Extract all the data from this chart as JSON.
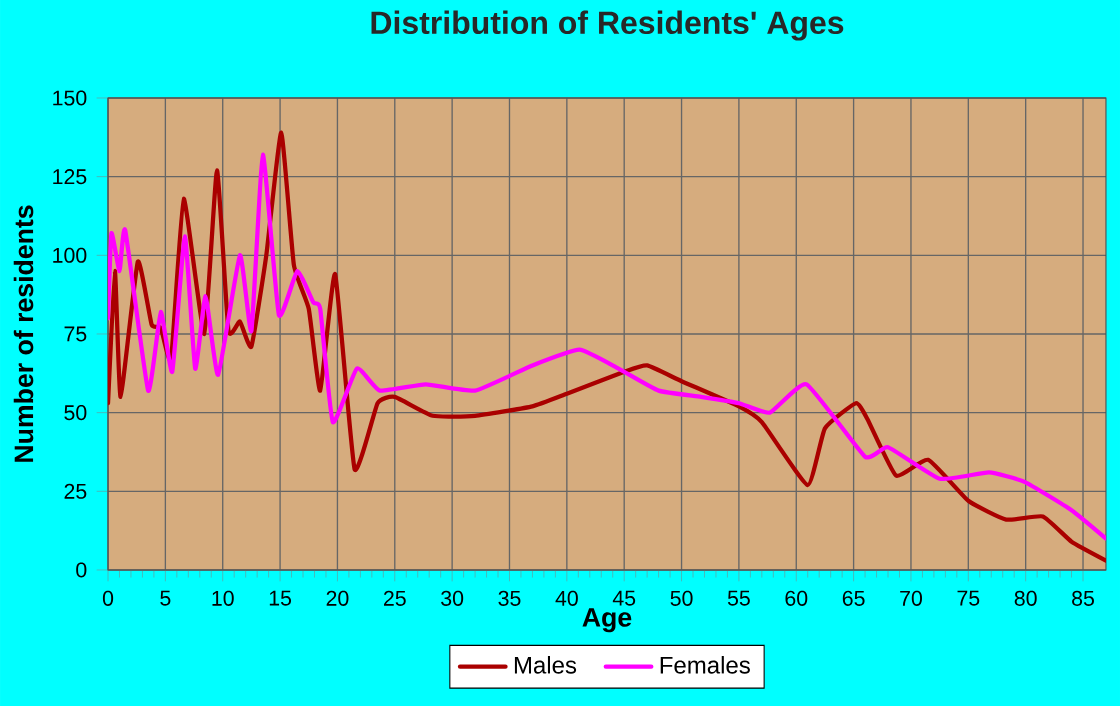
{
  "chart_data": {
    "type": "line",
    "title": "Distribution of Residents' Ages",
    "xlabel": "Age",
    "ylabel": "Number of residents",
    "xlim": [
      0,
      87
    ],
    "xticks": [
      0,
      5,
      10,
      15,
      20,
      25,
      30,
      35,
      40,
      45,
      50,
      55,
      60,
      65,
      70,
      75,
      80,
      85
    ],
    "ylim": [
      0,
      150
    ],
    "yticks": [
      0,
      25,
      50,
      75,
      100,
      125,
      150
    ],
    "grid": true,
    "legend": "bottom",
    "series": [
      {
        "name": "Males",
        "color": "#aa0000",
        "x": [
          0,
          0.6,
          1.1,
          2.6,
          3.8,
          4.6,
          5.5,
          6.6,
          8.4,
          9.5,
          10.5,
          11.5,
          12.5,
          13.8,
          15.1,
          16.2,
          17.5,
          18.5,
          19.8,
          21.5,
          23.5,
          25,
          28.3,
          32,
          37,
          40,
          45,
          47,
          50,
          55,
          57,
          61,
          62.5,
          65.2,
          66.2,
          68.7,
          71.5,
          75,
          78.3,
          81.5,
          84,
          87
        ],
        "values": [
          53,
          95,
          55,
          98,
          78,
          77,
          67,
          118,
          75,
          127,
          76,
          79,
          71,
          100,
          139,
          97,
          83,
          57,
          94,
          32,
          53,
          55,
          49,
          49,
          52,
          56,
          63,
          65,
          60,
          52,
          47,
          27,
          45,
          53,
          48,
          30,
          35,
          22,
          16,
          17,
          9,
          3
        ]
      },
      {
        "name": "Females",
        "color": "#ff00ff",
        "x": [
          0,
          0.3,
          1,
          1.5,
          3.5,
          4.6,
          5.6,
          6.7,
          7.6,
          8.5,
          9.6,
          11.5,
          12.5,
          13.5,
          14.9,
          16.5,
          17.9,
          18.5,
          19.6,
          21.7,
          23.7,
          27.7,
          32,
          37,
          41.1,
          44.5,
          48,
          51.7,
          55,
          57.7,
          60.9,
          66,
          68,
          72.5,
          76.8,
          79.9,
          84,
          87
        ],
        "values": [
          80,
          107,
          95,
          108,
          57,
          82,
          63,
          106,
          64,
          87,
          62,
          100,
          76,
          132,
          81,
          95,
          85,
          83,
          47,
          64,
          57,
          59,
          57,
          65,
          70,
          64,
          57,
          55,
          53,
          50,
          59,
          36,
          39,
          29,
          31,
          28,
          19,
          10
        ]
      }
    ]
  }
}
